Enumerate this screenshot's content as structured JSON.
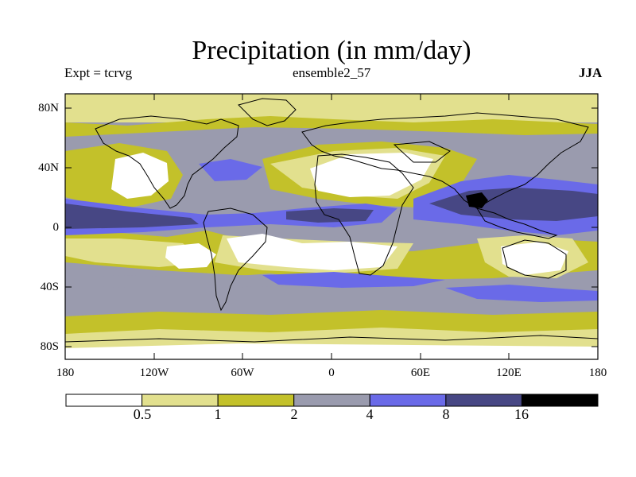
{
  "title": "Precipitation (in mm/day)",
  "experiment": "Expt = tcrvg",
  "ensemble": "ensemble2_57",
  "season": "JJA",
  "lat_labels": [
    "80N",
    "40N",
    "0",
    "40S",
    "80S"
  ],
  "lon_labels": [
    "180",
    "120W",
    "60W",
    "0",
    "60E",
    "120E",
    "180"
  ],
  "colorbar": {
    "colors": [
      "#ffffff",
      "#e2e08e",
      "#c3c12a",
      "#9a9bae",
      "#6a6ae8",
      "#474784",
      "#000000"
    ],
    "thresholds": [
      "0.5",
      "1",
      "2",
      "4",
      "8",
      "16"
    ]
  }
}
